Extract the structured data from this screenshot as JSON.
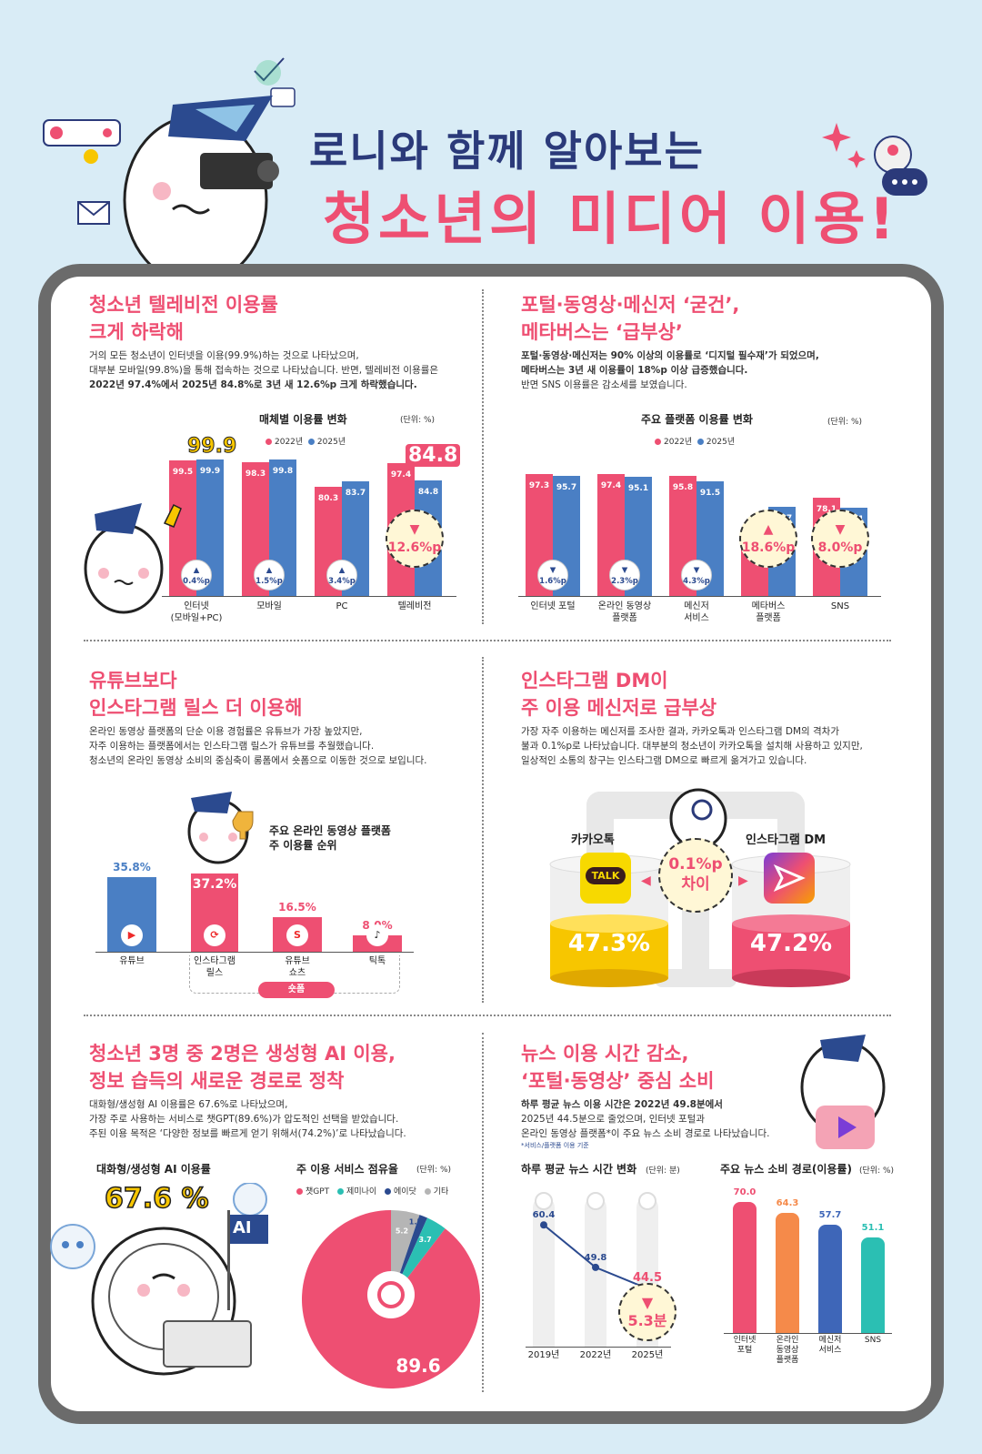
{
  "header": {
    "line1": "로니와 함께 알아보는",
    "line2": "청소년의 미디어 이용!"
  },
  "s1": {
    "title1": "청소년 텔레비전 이용률",
    "title2": "크게 하락해",
    "p1": "거의 모든 청소년이 인터넷을 이용(99.9%)하는 것으로 나타났으며,",
    "p2": "대부분 모바일(99.8%)을 통해 접속하는 것으로 나타났습니다. 반면, 텔레비전 이용률은",
    "p3": "2022년 97.4%에서 2025년 84.8%로 3년 새 12.6%p 크게 하락했습니다.",
    "chart_title": "매체별 이용률 변화",
    "unit": "(단위: %)",
    "highlight_internet": "99.9",
    "highlight_tv": "84.8"
  },
  "s2": {
    "title1": "포털·동영상·메신저 ‘굳건’,",
    "title2": "메타버스는 ‘급부상’",
    "p1": "포털·동영상·메신저는 90% 이상의 이용률로 ‘디지털 필수재’가 되었으며,",
    "p2": "메타버스는 3년 새 이용률이 18%p 이상 급증했습니다.",
    "p3": "반면 SNS 이용률은 감소세를 보였습니다.",
    "chart_title": "주요 플랫폼 이용률 변화",
    "unit": "(단위: %)"
  },
  "s3": {
    "title1": "유튜브보다",
    "title2": "인스타그램 릴스 더 이용해",
    "p1": "온라인 동영상 플랫폼의 단순 이용 경험률은 유튜브가 가장 높았지만,",
    "p2": "자주 이용하는 플랫폼에서는 인스타그램 릴스가 유튜브를 추월했습니다.",
    "p3": "청소년의 온라인 동영상 소비의 중심축이 롱폼에서 숏폼으로 이동한 것으로 보입니다.",
    "chart_title1": "주요 온라인 동영상 플랫폼",
    "chart_title2": "주 이용률 순위",
    "shorts": "숏폼"
  },
  "s4": {
    "title1": "인스타그램 DM이",
    "title2": "주 이용 메신저로 급부상",
    "p1": "가장 자주 이용하는 메신저를 조사한 결과, 카카오톡과 인스타그램 DM의 격차가",
    "p2": "불과 0.1%p로 나타났습니다. 대부분의 청소년이 카카오톡을 설치해 사용하고 있지만,",
    "p3": "일상적인 소통의 창구는 인스타그램 DM으로 빠르게 옮겨가고 있습니다.",
    "kakao_label": "카카오톡",
    "insta_label": "인스타그램 DM",
    "kakao_value": "47.3%",
    "insta_value": "47.2%",
    "gap1": "0.1%p",
    "gap2": "차이",
    "talk": "TALK"
  },
  "s5": {
    "title1": "청소년 3명 중 2명은 생성형 AI 이용,",
    "title2": "정보 습득의 새로운 경로로 정착",
    "p1": "대화형/생성형 AI 이용률은 67.6%로 나타났으며,",
    "p2": "가장 주로 사용하는 서비스로 챗GPT(89.6%)가 압도적인 선택을 받았습니다.",
    "p3": "주된 이용 목적은 ‘다양한 정보를 빠르게 얻기 위해서(74.2%)’로 나타났습니다.",
    "usage_title": "대화형/생성형 AI 이용률",
    "usage_value": "67.6 %",
    "ai_flag": "AI",
    "share_title": "주 이용 서비스 점유율",
    "unit": "(단위: %)"
  },
  "s6": {
    "title1": "뉴스 이용 시간 감소,",
    "title2": "‘포털·동영상’ 중심 소비",
    "p1": "하루 평균 뉴스 이용 시간은 2022년 49.8분에서",
    "p2": "2025년 44.5분으로 줄었으며, 인터넷 포털과",
    "p3": "온라인 동영상 플랫폼*이 주요 뉴스 소비 경로로 나타났습니다.",
    "note": "*서비스/플랫폼 이용 기준",
    "time_title": "하루 평균 뉴스 시간 변화",
    "time_unit": "(단위: 분)",
    "time_drop": "5.3분",
    "route_title": "주요 뉴스 소비 경로(이용률)",
    "route_unit": "(단위: %)"
  },
  "colors": {
    "pink": "#ee4f72",
    "blue": "#4a7fc4",
    "navy": "#2b3a7a",
    "yellow": "#f7c600"
  },
  "chart_data": [
    {
      "type": "bar",
      "title": "매체별 이용률 변화",
      "categories": [
        "인터넷\n(모바일+PC)",
        "모바일",
        "PC",
        "텔레비전"
      ],
      "series": [
        {
          "name": "2022년",
          "values": [
            99.5,
            98.3,
            80.3,
            97.4
          ]
        },
        {
          "name": "2025년",
          "values": [
            99.9,
            99.8,
            83.7,
            84.8
          ]
        }
      ],
      "changes": [
        "▲\n0.4%p",
        "▲\n1.5%p",
        "▲\n3.4%p",
        "▼\n12.6%p"
      ]
    },
    {
      "type": "bar",
      "title": "주요 플랫폼 이용률 변화",
      "categories": [
        "인터넷 포털",
        "온라인 동영상\n플랫폼",
        "메신저\n서비스",
        "메타버스\n플랫폼",
        "SNS"
      ],
      "series": [
        {
          "name": "2022년",
          "values": [
            97.3,
            97.4,
            95.8,
            52.1,
            78.1
          ]
        },
        {
          "name": "2025년",
          "values": [
            95.7,
            95.1,
            91.5,
            70.7,
            70.1
          ]
        }
      ],
      "changes": [
        "▼\n1.6%p",
        "▼\n2.3%p",
        "▼\n4.3%p",
        "▲\n18.6%p",
        "▼\n8.0%p"
      ]
    },
    {
      "type": "bar",
      "title": "주요 온라인 동영상 플랫폼 주 이용률 순위",
      "categories": [
        "유튜브",
        "인스타그램\n릴스",
        "유튜브\n쇼츠",
        "틱톡"
      ],
      "values": [
        35.8,
        37.2,
        16.5,
        8.0
      ],
      "labels": [
        "35.8%",
        "37.2%",
        "16.5%",
        "8.0%"
      ]
    },
    {
      "type": "pie",
      "title": "주 이용 서비스 점유율",
      "categories": [
        "챗GPT",
        "제미나이",
        "에이닷",
        "기타"
      ],
      "values": [
        89.6,
        3.7,
        1.5,
        5.2
      ]
    },
    {
      "type": "line",
      "title": "하루 평균 뉴스 시간 변화",
      "x": [
        "2019년",
        "2022년",
        "2025년"
      ],
      "y": [
        60.4,
        49.8,
        44.5
      ]
    },
    {
      "type": "bar",
      "title": "주요 뉴스 소비 경로(이용률)",
      "categories": [
        "인터넷\n포털",
        "온라인\n동영상\n플랫폼",
        "메신저\n서비스",
        "SNS"
      ],
      "values": [
        70.0,
        64.3,
        57.7,
        51.1
      ],
      "labels": [
        "70.0",
        "64.3",
        "57.7",
        "51.1"
      ]
    }
  ]
}
